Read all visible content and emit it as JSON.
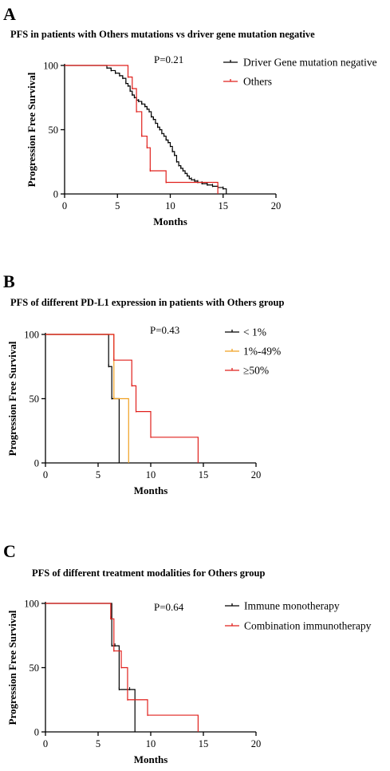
{
  "chart_data": [
    {
      "type": "line",
      "panel": "A",
      "title": "PFS in patients with Others mutations vs driver gene mutation negative",
      "xlabel": "Months",
      "ylabel": "Progression Free Survival",
      "xlim": [
        0,
        20
      ],
      "ylim": [
        0,
        100
      ],
      "xticks": [
        0,
        5,
        10,
        15,
        20
      ],
      "yticks": [
        0,
        50,
        100
      ],
      "pvalue": "P=0.21",
      "legend_position": "top-right",
      "series": [
        {
          "name": "Driver Gene mutation negative",
          "color": "#000000",
          "x": [
            0,
            4.0,
            4.4,
            4.8,
            5.2,
            5.5,
            5.8,
            6.0,
            6.2,
            6.4,
            6.6,
            6.8,
            7.0,
            7.3,
            7.6,
            7.8,
            8.0,
            8.2,
            8.4,
            8.6,
            8.8,
            9.0,
            9.2,
            9.4,
            9.6,
            9.8,
            10.0,
            10.2,
            10.4,
            10.6,
            10.8,
            11.0,
            11.2,
            11.4,
            11.6,
            11.8,
            12.0,
            12.3,
            12.6,
            13.0,
            13.5,
            14.0,
            14.5,
            15.0,
            15.3
          ],
          "y": [
            100,
            98,
            96,
            94,
            92,
            90,
            86,
            84,
            80,
            77,
            75,
            73,
            72,
            70,
            68,
            66,
            64,
            60,
            58,
            55,
            52,
            50,
            47,
            45,
            42,
            40,
            37,
            33,
            30,
            25,
            22,
            20,
            18,
            16,
            14,
            12,
            11,
            10,
            9,
            8,
            7,
            6,
            5,
            4,
            0
          ]
        },
        {
          "name": "Others",
          "color": "#e0201c",
          "x": [
            0,
            6.0,
            6.4,
            6.8,
            7.3,
            7.8,
            8.1,
            9.6,
            14.5
          ],
          "y": [
            100,
            91,
            82,
            64,
            45,
            36,
            18,
            9,
            0
          ]
        }
      ]
    },
    {
      "type": "line",
      "panel": "B",
      "title": "PFS of different PD-L1 expression in patients with Others group",
      "xlabel": "Months",
      "ylabel": "Progression Free Survival",
      "xlim": [
        0,
        20
      ],
      "ylim": [
        0,
        100
      ],
      "xticks": [
        0,
        5,
        10,
        15,
        20
      ],
      "yticks": [
        0,
        50,
        100
      ],
      "pvalue": "P=0.43",
      "legend_position": "top-right",
      "series": [
        {
          "name": "< 1%",
          "color": "#000000",
          "x": [
            0,
            6.0,
            6.3,
            7.0
          ],
          "y": [
            100,
            75,
            50,
            0
          ]
        },
        {
          "name": "1%-49%",
          "color": "#f0a020",
          "x": [
            0,
            6.5,
            7.9
          ],
          "y": [
            100,
            50,
            0
          ]
        },
        {
          "name": "≥50%",
          "color": "#e0201c",
          "x": [
            0,
            6.5,
            8.2,
            8.6,
            10.0,
            14.5
          ],
          "y": [
            100,
            80,
            60,
            40,
            20,
            0
          ]
        }
      ]
    },
    {
      "type": "line",
      "panel": "C",
      "title": "PFS of different treatment modalities for Others group",
      "xlabel": "Months",
      "ylabel": "Progression Free Survival",
      "xlim": [
        0,
        20
      ],
      "ylim": [
        0,
        100
      ],
      "xticks": [
        0,
        5,
        10,
        15,
        20
      ],
      "yticks": [
        0,
        50,
        100
      ],
      "pvalue": "P=0.64",
      "legend_position": "top-right",
      "series": [
        {
          "name": "Immune monotherapy",
          "color": "#000000",
          "x": [
            0,
            6.3,
            6.6,
            7.0,
            8.0,
            8.5
          ],
          "y": [
            100,
            67,
            67,
            33,
            33,
            0
          ]
        },
        {
          "name": "Combination immunotherapy",
          "color": "#e0201c",
          "x": [
            0,
            6.2,
            6.5,
            7.2,
            7.8,
            9.7,
            14.5
          ],
          "y": [
            100,
            88,
            63,
            50,
            25,
            13,
            0
          ]
        }
      ]
    }
  ]
}
